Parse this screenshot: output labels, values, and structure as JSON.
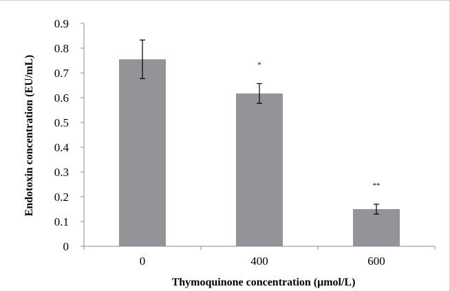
{
  "chart_data": {
    "type": "bar",
    "categories": [
      "0",
      "400",
      "600"
    ],
    "values": [
      0.755,
      0.617,
      0.15
    ],
    "errors": [
      0.078,
      0.04,
      0.02
    ],
    "significance": [
      "",
      "*",
      "**"
    ],
    "xlabel": "Thymoquinone concentration (μmol/L)",
    "ylabel": "Endotoxin concentration (EU/mL)",
    "ylim": [
      0,
      0.9
    ],
    "yticks": [
      "0",
      "0.1",
      "0.2",
      "0.3",
      "0.4",
      "0.5",
      "0.6",
      "0.7",
      "0.8",
      "0.9"
    ],
    "grid": false,
    "legend": "none",
    "bar_color": "#929497",
    "error_color": "#000000"
  }
}
